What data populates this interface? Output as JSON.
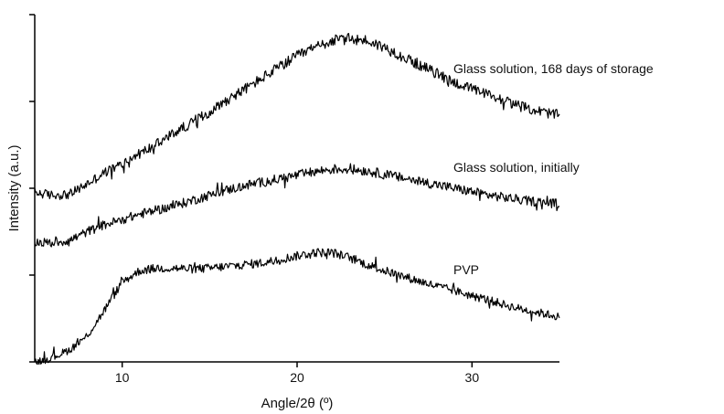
{
  "chart_data": {
    "type": "line",
    "title": "",
    "xlabel": "Angle/2θ (º)",
    "ylabel": "Intensity (a.u.)",
    "xlim": [
      5,
      35
    ],
    "ylim": [
      0,
      4
    ],
    "x_ticks": [
      10,
      20,
      30
    ],
    "x_tick_labels": [
      "10",
      "20",
      "30"
    ],
    "y_tick_labels_shown": false,
    "grid": false,
    "legend": "none (series labelled directly at right end of curves)",
    "line_color": "#000000",
    "series": [
      {
        "name": "Glass solution, 168 days of storage",
        "x": [
          5,
          6,
          7,
          8,
          9,
          10,
          11,
          12,
          13,
          14,
          15,
          16,
          17,
          18,
          19,
          20,
          21,
          22,
          23,
          24,
          25,
          26,
          27,
          28,
          29,
          30,
          31,
          32,
          33,
          34,
          35
        ],
        "y": [
          1.95,
          1.92,
          1.93,
          2.05,
          2.18,
          2.28,
          2.4,
          2.51,
          2.64,
          2.76,
          2.88,
          3.02,
          3.14,
          3.27,
          3.4,
          3.52,
          3.62,
          3.7,
          3.72,
          3.7,
          3.62,
          3.52,
          3.42,
          3.32,
          3.22,
          3.14,
          3.07,
          3.0,
          2.93,
          2.88,
          2.84
        ]
      },
      {
        "name": "Glass solution, initially",
        "x": [
          5,
          6,
          7,
          8,
          9,
          10,
          11,
          12,
          13,
          14,
          15,
          16,
          17,
          18,
          19,
          20,
          21,
          22,
          23,
          24,
          25,
          26,
          27,
          28,
          29,
          30,
          31,
          32,
          33,
          34,
          35
        ],
        "y": [
          1.38,
          1.37,
          1.4,
          1.5,
          1.58,
          1.64,
          1.7,
          1.75,
          1.8,
          1.86,
          1.92,
          1.98,
          2.03,
          2.07,
          2.11,
          2.15,
          2.19,
          2.22,
          2.22,
          2.2,
          2.16,
          2.12,
          2.08,
          2.04,
          2.0,
          1.96,
          1.92,
          1.89,
          1.86,
          1.84,
          1.82
        ]
      },
      {
        "name": "PVP",
        "x": [
          5,
          6,
          7,
          8,
          9,
          10,
          11,
          12,
          13,
          14,
          15,
          16,
          17,
          18,
          19,
          20,
          21,
          22,
          23,
          24,
          25,
          26,
          27,
          28,
          29,
          30,
          31,
          32,
          33,
          34,
          35
        ],
        "y": [
          0.0,
          0.05,
          0.14,
          0.3,
          0.6,
          0.92,
          1.05,
          1.08,
          1.08,
          1.07,
          1.08,
          1.1,
          1.12,
          1.14,
          1.18,
          1.22,
          1.26,
          1.26,
          1.2,
          1.12,
          1.05,
          0.99,
          0.93,
          0.87,
          0.82,
          0.76,
          0.71,
          0.65,
          0.6,
          0.56,
          0.52
        ]
      }
    ],
    "annotations": [
      "Glass solution, 168 days of storage",
      "Glass solution, initially",
      "PVP"
    ]
  }
}
